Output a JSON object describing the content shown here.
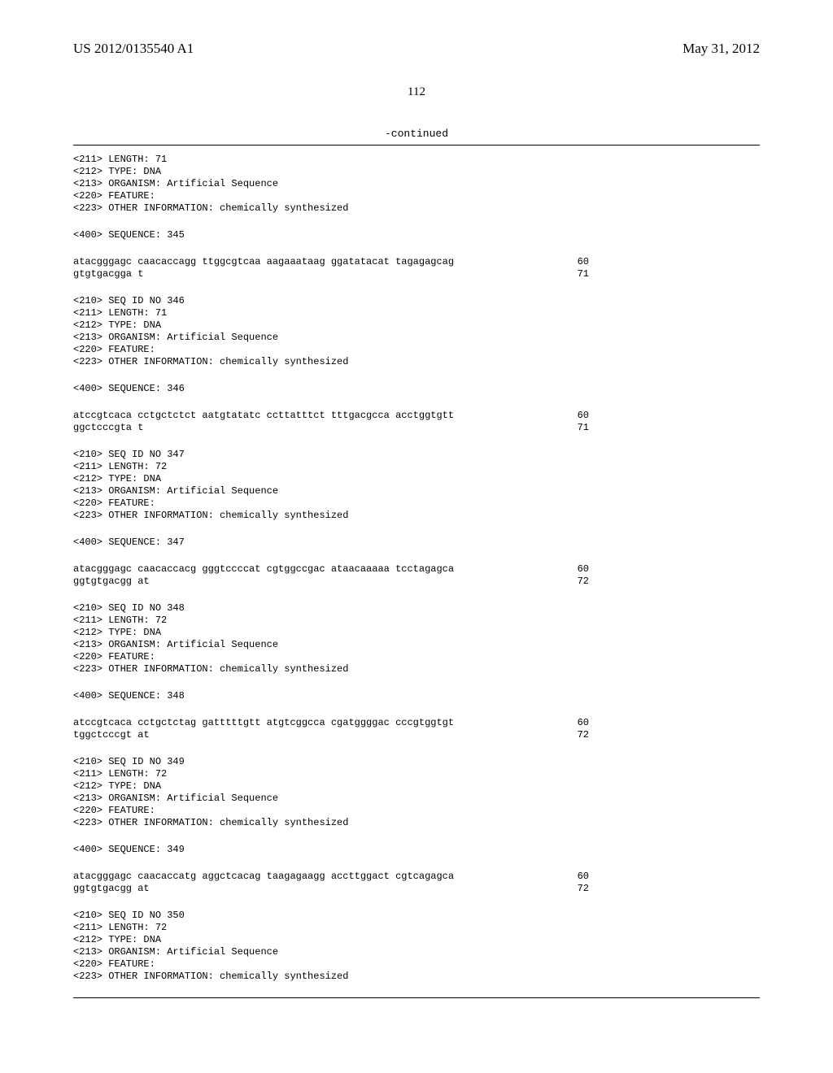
{
  "header": {
    "pub_number": "US 2012/0135540 A1",
    "pub_date": "May 31, 2012"
  },
  "page_number": "112",
  "continued_label": "-continued",
  "blocks": [
    {
      "type": "meta",
      "lines": [
        "<211> LENGTH: 71",
        "<212> TYPE: DNA",
        "<213> ORGANISM: Artificial Sequence",
        "<220> FEATURE:",
        "<223> OTHER INFORMATION: chemically synthesized"
      ]
    },
    {
      "type": "meta",
      "lines": [
        "<400> SEQUENCE: 345"
      ]
    },
    {
      "type": "seq",
      "lines": [
        {
          "text": "atacgggagc caacaccagg ttggcgtcaa aagaaataag ggatatacat tagagagcag",
          "num": "60"
        },
        {
          "text": "gtgtgacgga t",
          "num": "71"
        }
      ]
    },
    {
      "type": "meta",
      "lines": [
        "<210> SEQ ID NO 346",
        "<211> LENGTH: 71",
        "<212> TYPE: DNA",
        "<213> ORGANISM: Artificial Sequence",
        "<220> FEATURE:",
        "<223> OTHER INFORMATION: chemically synthesized"
      ]
    },
    {
      "type": "meta",
      "lines": [
        "<400> SEQUENCE: 346"
      ]
    },
    {
      "type": "seq",
      "lines": [
        {
          "text": "atccgtcaca cctgctctct aatgtatatc ccttatttct tttgacgcca acctggtgtt",
          "num": "60"
        },
        {
          "text": "ggctcccgta t",
          "num": "71"
        }
      ]
    },
    {
      "type": "meta",
      "lines": [
        "<210> SEQ ID NO 347",
        "<211> LENGTH: 72",
        "<212> TYPE: DNA",
        "<213> ORGANISM: Artificial Sequence",
        "<220> FEATURE:",
        "<223> OTHER INFORMATION: chemically synthesized"
      ]
    },
    {
      "type": "meta",
      "lines": [
        "<400> SEQUENCE: 347"
      ]
    },
    {
      "type": "seq",
      "lines": [
        {
          "text": "atacgggagc caacaccacg gggtccccat cgtggccgac ataacaaaaa tcctagagca",
          "num": "60"
        },
        {
          "text": "ggtgtgacgg at",
          "num": "72"
        }
      ]
    },
    {
      "type": "meta",
      "lines": [
        "<210> SEQ ID NO 348",
        "<211> LENGTH: 72",
        "<212> TYPE: DNA",
        "<213> ORGANISM: Artificial Sequence",
        "<220> FEATURE:",
        "<223> OTHER INFORMATION: chemically synthesized"
      ]
    },
    {
      "type": "meta",
      "lines": [
        "<400> SEQUENCE: 348"
      ]
    },
    {
      "type": "seq",
      "lines": [
        {
          "text": "atccgtcaca cctgctctag gatttttgtt atgtcggcca cgatggggac cccgtggtgt",
          "num": "60"
        },
        {
          "text": "tggctcccgt at",
          "num": "72"
        }
      ]
    },
    {
      "type": "meta",
      "lines": [
        "<210> SEQ ID NO 349",
        "<211> LENGTH: 72",
        "<212> TYPE: DNA",
        "<213> ORGANISM: Artificial Sequence",
        "<220> FEATURE:",
        "<223> OTHER INFORMATION: chemically synthesized"
      ]
    },
    {
      "type": "meta",
      "lines": [
        "<400> SEQUENCE: 349"
      ]
    },
    {
      "type": "seq",
      "lines": [
        {
          "text": "atacgggagc caacaccatg aggctcacag taagagaagg accttggact cgtcagagca",
          "num": "60"
        },
        {
          "text": "ggtgtgacgg at",
          "num": "72"
        }
      ]
    },
    {
      "type": "meta",
      "lines": [
        "<210> SEQ ID NO 350",
        "<211> LENGTH: 72",
        "<212> TYPE: DNA",
        "<213> ORGANISM: Artificial Sequence",
        "<220> FEATURE:",
        "<223> OTHER INFORMATION: chemically synthesized"
      ]
    }
  ]
}
